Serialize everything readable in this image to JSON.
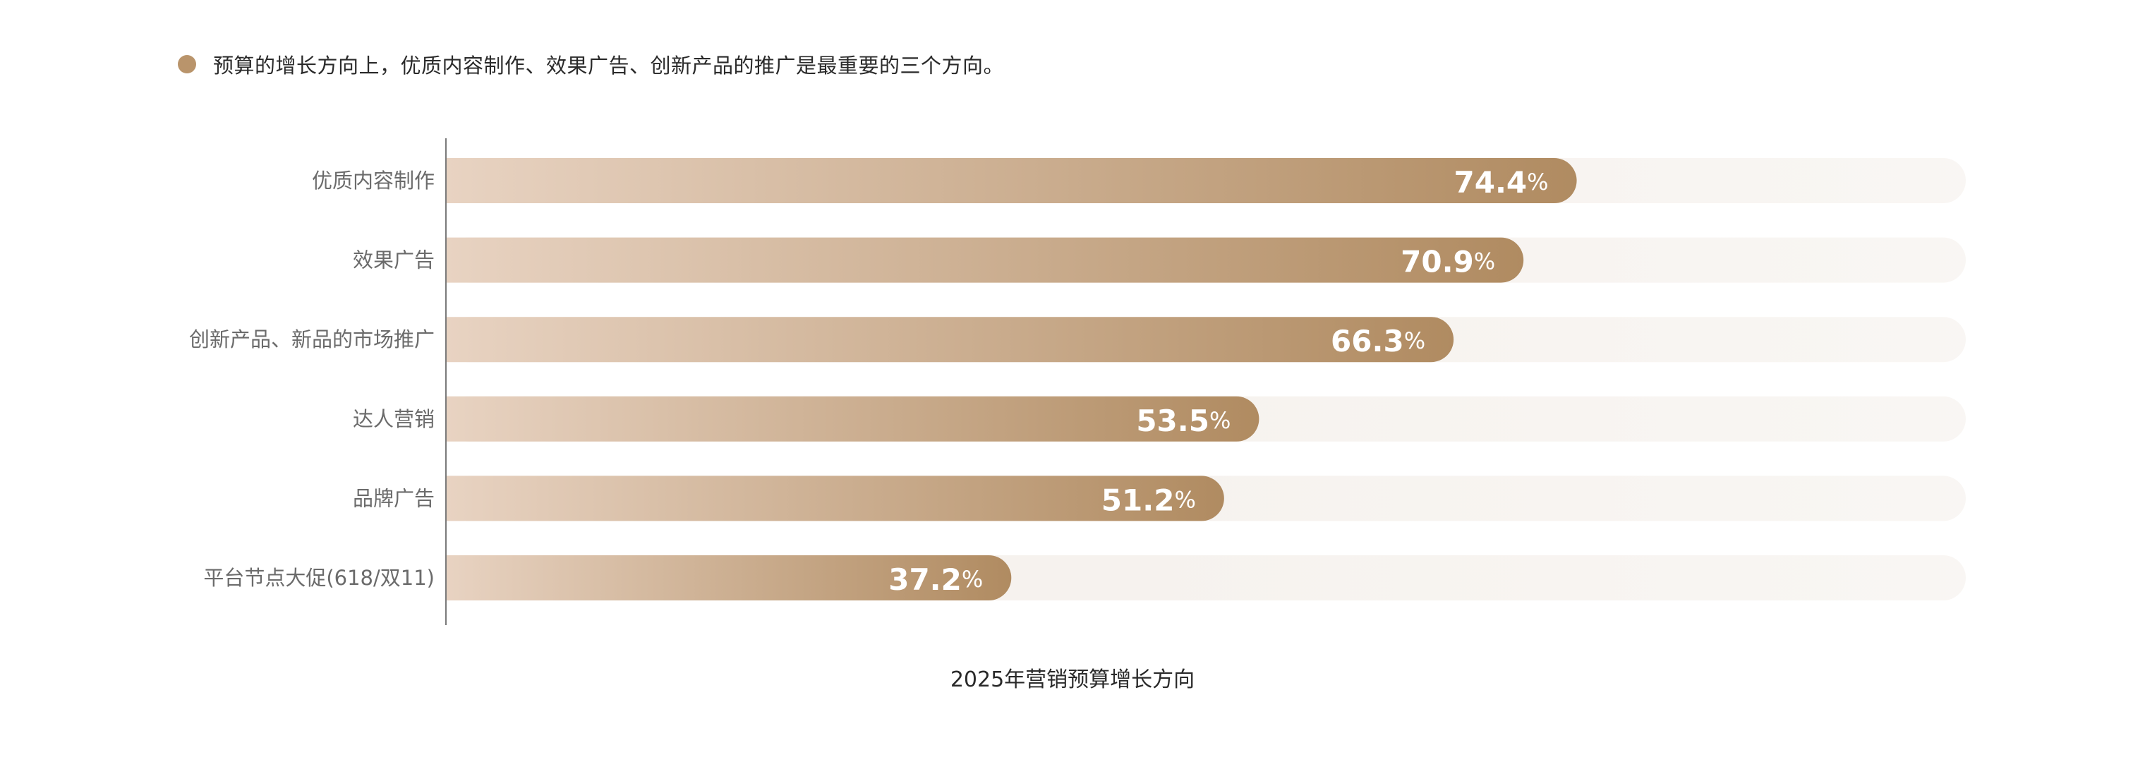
{
  "note": {
    "text": "预算的增长方向上，优质内容制作、效果广告、创新产品的推广是最重要的三个方向。"
  },
  "caption": "2025年营销预算增长方向",
  "colors": {
    "accent": "#b9946b",
    "bar_start": "#e8d3c2",
    "bar_end": "#b08b61",
    "track": "#f4efea",
    "axis": "#7a7a7a"
  },
  "chart_data": {
    "type": "bar",
    "orientation": "horizontal",
    "categories": [
      "优质内容制作",
      "效果广告",
      "创新产品、新品的市场推广",
      "达人营销",
      "品牌广告",
      "平台节点大促(618/双11)"
    ],
    "values": [
      74.4,
      70.9,
      66.3,
      53.5,
      51.2,
      37.2
    ],
    "value_suffix": "%",
    "title": "2025年营销预算增长方向",
    "xlabel": "",
    "ylabel": "",
    "xlim": [
      0,
      100
    ],
    "grid": false,
    "legend": "none",
    "data_labels": true
  }
}
